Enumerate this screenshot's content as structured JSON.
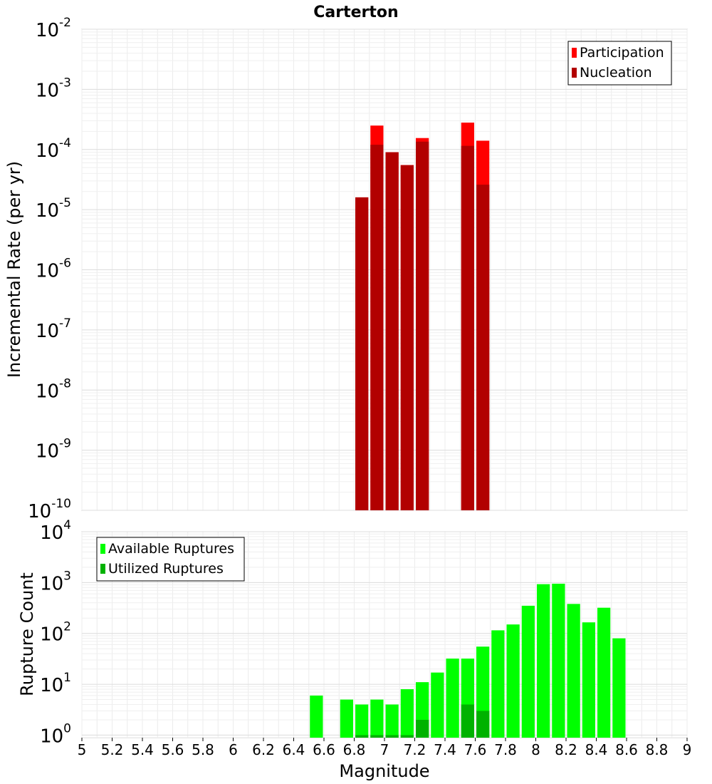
{
  "chart_data": [
    {
      "type": "bar",
      "title": "Carterton",
      "xlabel": "Magnitude",
      "ylabel": "Incremental Rate (per yr)",
      "xlim": [
        5,
        9
      ],
      "ylim_log10": [
        -10,
        -2
      ],
      "yscale": "log",
      "ytick_exponents": [
        "-10",
        "-9",
        "-8",
        "-7",
        "-6",
        "-5",
        "-4",
        "-3",
        "-2"
      ],
      "legend_position": "top-right",
      "grid": true,
      "bin_width": 0.1,
      "series": [
        {
          "name": "Participation",
          "color": "#ff0000",
          "x": [
            6.85,
            6.95,
            7.05,
            7.15,
            7.25,
            7.55,
            7.65
          ],
          "values": [
            1.6e-05,
            0.00025,
            9e-05,
            5.5e-05,
            0.000155,
            0.00028,
            0.00014
          ]
        },
        {
          "name": "Nucleation",
          "color": "#b20000",
          "x": [
            6.85,
            6.95,
            7.05,
            7.15,
            7.25,
            7.55,
            7.65
          ],
          "values": [
            1.6e-05,
            0.00012,
            9e-05,
            5.5e-05,
            0.000135,
            0.000115,
            2.6e-05
          ]
        }
      ]
    },
    {
      "type": "bar",
      "xlabel": "Magnitude",
      "ylabel": "Rupture Count",
      "xlim": [
        5,
        9
      ],
      "ylim_log10": [
        -0.05,
        4
      ],
      "yscale": "log",
      "ytick_exponents": [
        "0",
        "1",
        "2",
        "3",
        "4"
      ],
      "xticks": [
        "5",
        "5.2",
        "5.4",
        "5.6",
        "5.8",
        "6",
        "6.2",
        "6.4",
        "6.6",
        "6.8",
        "7",
        "7.2",
        "7.4",
        "7.6",
        "7.8",
        "8",
        "8.2",
        "8.4",
        "8.6",
        "8.8",
        "9"
      ],
      "legend_position": "top-left",
      "grid": true,
      "bin_width": 0.1,
      "series": [
        {
          "name": "Available Ruptures",
          "color": "#00ff00",
          "x": [
            6.55,
            6.75,
            6.85,
            6.95,
            7.05,
            7.15,
            7.25,
            7.35,
            7.45,
            7.55,
            7.65,
            7.75,
            7.85,
            7.95,
            8.05,
            8.15,
            8.25,
            8.35,
            8.45,
            8.55
          ],
          "values": [
            6,
            5,
            4,
            5,
            4,
            8,
            11,
            17,
            32,
            32,
            55,
            115,
            150,
            350,
            930,
            950,
            380,
            165,
            320,
            80
          ]
        },
        {
          "name": "Utilized Ruptures",
          "color": "#00b200",
          "x": [
            6.85,
            6.95,
            7.05,
            7.15,
            7.25,
            7.55,
            7.65
          ],
          "values": [
            1,
            1,
            1,
            1,
            2,
            4,
            3
          ]
        }
      ]
    }
  ]
}
